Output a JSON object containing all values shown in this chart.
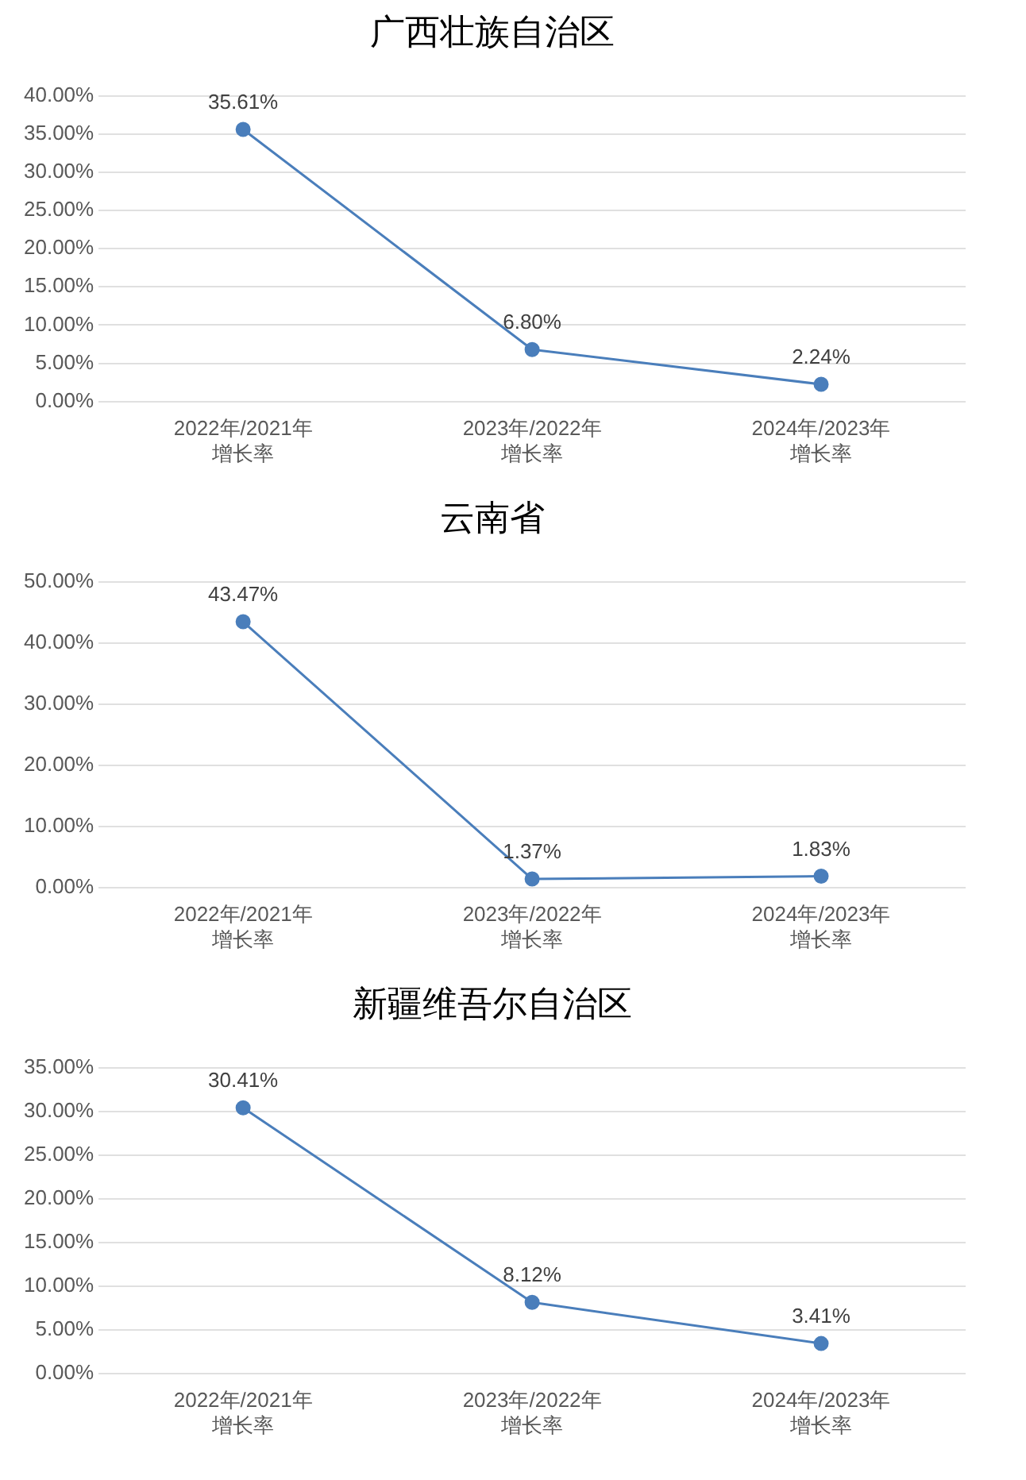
{
  "chart_data": [
    {
      "type": "line",
      "title": "广西壮族自治区",
      "categories": [
        "2022年/2021年增长率",
        "2023年/2022年增长率",
        "2024年/2023年增长率"
      ],
      "series": [
        {
          "color": "#4a7ebb",
          "values": [
            35.61,
            6.8,
            2.24
          ],
          "value_labels": [
            "35.61%",
            "6.80%",
            "2.24%"
          ]
        }
      ],
      "ylim": [
        0,
        40
      ],
      "yticks": [
        {
          "value": 0,
          "label": "0.00%"
        },
        {
          "value": 5,
          "label": "5.00%"
        },
        {
          "value": 10,
          "label": "10.00%"
        },
        {
          "value": 15,
          "label": "15.00%"
        },
        {
          "value": 20,
          "label": "20.00%"
        },
        {
          "value": 25,
          "label": "25.00%"
        },
        {
          "value": 30,
          "label": "30.00%"
        },
        {
          "value": 35,
          "label": "35.00%"
        },
        {
          "value": 40,
          "label": "40.00%"
        }
      ],
      "grid": "y",
      "marker": "circle",
      "legend": false
    },
    {
      "type": "line",
      "title": "云南省",
      "categories": [
        "2022年/2021年增长率",
        "2023年/2022年增长率",
        "2024年/2023年增长率"
      ],
      "series": [
        {
          "color": "#4a7ebb",
          "values": [
            43.47,
            1.37,
            1.83
          ],
          "value_labels": [
            "43.47%",
            "1.37%",
            "1.83%"
          ]
        }
      ],
      "ylim": [
        0,
        50
      ],
      "yticks": [
        {
          "value": 0,
          "label": "0.00%"
        },
        {
          "value": 10,
          "label": "10.00%"
        },
        {
          "value": 20,
          "label": "20.00%"
        },
        {
          "value": 30,
          "label": "30.00%"
        },
        {
          "value": 40,
          "label": "40.00%"
        },
        {
          "value": 50,
          "label": "50.00%"
        }
      ],
      "grid": "y",
      "marker": "circle",
      "legend": false
    },
    {
      "type": "line",
      "title": "新疆维吾尔自治区",
      "categories": [
        "2022年/2021年增长率",
        "2023年/2022年增长率",
        "2024年/2023年增长率"
      ],
      "series": [
        {
          "color": "#4a7ebb",
          "values": [
            30.41,
            8.12,
            3.41
          ],
          "value_labels": [
            "30.41%",
            "8.12%",
            "3.41%"
          ]
        }
      ],
      "ylim": [
        0,
        35
      ],
      "yticks": [
        {
          "value": 0,
          "label": "0.00%"
        },
        {
          "value": 5,
          "label": "5.00%"
        },
        {
          "value": 10,
          "label": "10.00%"
        },
        {
          "value": 15,
          "label": "15.00%"
        },
        {
          "value": 20,
          "label": "20.00%"
        },
        {
          "value": 25,
          "label": "25.00%"
        },
        {
          "value": 30,
          "label": "30.00%"
        },
        {
          "value": 35,
          "label": "35.00%"
        }
      ],
      "grid": "y",
      "marker": "circle",
      "legend": false
    }
  ]
}
